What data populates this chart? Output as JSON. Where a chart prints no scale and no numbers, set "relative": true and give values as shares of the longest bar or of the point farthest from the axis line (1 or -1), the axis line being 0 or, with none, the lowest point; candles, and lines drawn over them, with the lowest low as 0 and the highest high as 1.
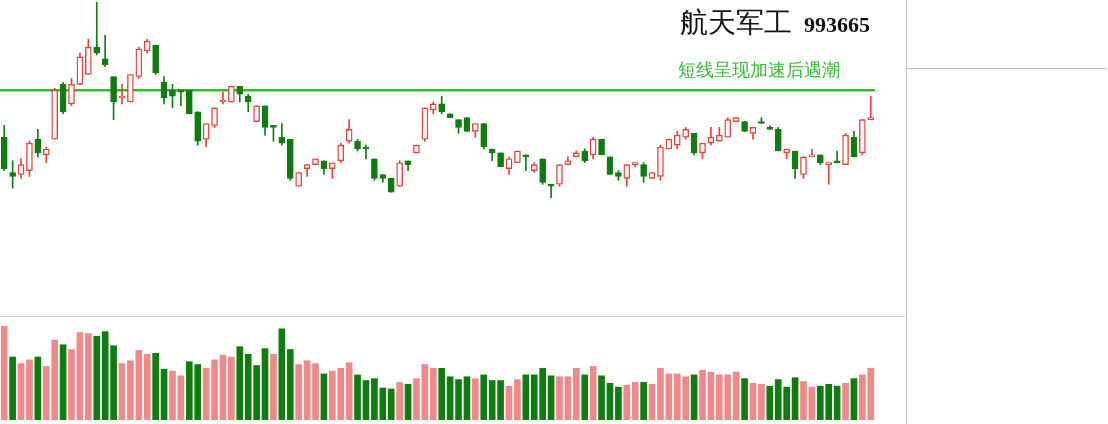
{
  "chart_data": [
    {
      "type": "candlestick",
      "title": "航天军工",
      "subtitle": "993665",
      "relative": true,
      "categories": [
        null,
        null,
        null,
        null,
        null,
        null,
        null,
        null,
        null,
        null,
        null,
        null,
        null,
        null,
        null,
        null,
        null,
        null,
        null,
        null,
        null,
        null,
        null,
        null,
        null,
        null,
        null,
        null,
        null,
        null,
        null,
        null,
        null,
        null,
        null,
        null,
        null,
        null,
        null,
        null,
        null,
        null,
        null,
        null,
        null,
        null,
        null,
        null,
        null,
        null,
        null,
        null,
        null,
        null,
        null,
        null,
        null,
        null,
        null,
        null,
        null,
        null,
        null,
        null,
        null,
        null,
        null,
        null,
        null,
        null,
        null,
        null,
        null,
        null,
        null,
        null,
        null,
        null,
        null,
        null,
        null,
        null,
        null,
        null,
        null,
        null,
        null,
        null,
        null,
        null,
        null,
        null,
        null,
        null,
        null,
        null,
        null,
        null,
        null,
        null,
        null,
        null,
        null,
        null
      ],
      "ohlc": [
        [
          0.31,
          0.37,
          0.14,
          0.15
        ],
        [
          0.13,
          0.19,
          0.05,
          0.11
        ],
        [
          0.12,
          0.2,
          0.1,
          0.17
        ],
        [
          0.14,
          0.29,
          0.11,
          0.28
        ],
        [
          0.3,
          0.35,
          0.21,
          0.23
        ],
        [
          0.22,
          0.26,
          0.18,
          0.25
        ],
        [
          0.3,
          0.56,
          0.3,
          0.55
        ],
        [
          0.58,
          0.59,
          0.43,
          0.44
        ],
        [
          0.48,
          0.61,
          0.47,
          0.58
        ],
        [
          0.58,
          0.74,
          0.58,
          0.72
        ],
        [
          0.63,
          0.81,
          0.63,
          0.77
        ],
        [
          0.77,
          1,
          0.73,
          0.74
        ],
        [
          0.71,
          0.83,
          0.67,
          0.68
        ],
        [
          0.62,
          0.62,
          0.4,
          0.49
        ],
        [
          0.51,
          0.58,
          0.48,
          0.52
        ],
        [
          0.49,
          0.63,
          0.49,
          0.63
        ],
        [
          0.62,
          0.77,
          0.61,
          0.76
        ],
        [
          0.75,
          0.81,
          0.74,
          0.8
        ],
        [
          0.78,
          0.78,
          0.63,
          0.64
        ],
        [
          0.59,
          0.62,
          0.48,
          0.51
        ],
        [
          0.55,
          0.58,
          0.46,
          0.52
        ],
        [
          0.55,
          0.55,
          0.47,
          0.54
        ],
        [
          0.55,
          0.55,
          0.43,
          0.43
        ],
        [
          0.44,
          0.44,
          0.27,
          0.29
        ],
        [
          0.3,
          0.38,
          0.26,
          0.38
        ],
        [
          0.37,
          0.46,
          0.36,
          0.46
        ],
        [
          0.49,
          0.54,
          0.48,
          0.5
        ],
        [
          0.49,
          0.57,
          0.49,
          0.57
        ],
        [
          0.57,
          0.57,
          0.49,
          0.53
        ],
        [
          0.52,
          0.53,
          0.44,
          0.49
        ],
        [
          0.39,
          0.47,
          0.39,
          0.47
        ],
        [
          0.47,
          0.47,
          0.32,
          0.36
        ],
        [
          0.37,
          0.37,
          0.29,
          0.36
        ],
        [
          0.31,
          0.38,
          0.27,
          0.28
        ],
        [
          0.3,
          0.3,
          0.09,
          0.1
        ],
        [
          0.06,
          0.13,
          0.06,
          0.13
        ],
        [
          0.15,
          0.17,
          0.11,
          0.17
        ],
        [
          0.17,
          0.2,
          0.17,
          0.2
        ],
        [
          0.19,
          0.19,
          0.12,
          0.15
        ],
        [
          0.15,
          0.18,
          0.1,
          0.18
        ],
        [
          0.19,
          0.28,
          0.18,
          0.27
        ],
        [
          0.29,
          0.4,
          0.28,
          0.35
        ],
        [
          0.29,
          0.3,
          0.24,
          0.25
        ],
        [
          0.26,
          0.27,
          0.2,
          0.25
        ],
        [
          0.2,
          0.2,
          0.09,
          0.1
        ],
        [
          0.12,
          0.12,
          0.08,
          0.1
        ],
        [
          0.1,
          0.1,
          0.03,
          0.03
        ],
        [
          0.06,
          0.19,
          0.06,
          0.18
        ],
        [
          0.19,
          0.19,
          0.14,
          0.17
        ],
        [
          0.23,
          0.27,
          0.23,
          0.27
        ],
        [
          0.3,
          0.46,
          0.29,
          0.46
        ],
        [
          0.45,
          0.49,
          0.43,
          0.48
        ],
        [
          0.48,
          0.52,
          0.43,
          0.44
        ],
        [
          0.43,
          0.43,
          0.41,
          0.41
        ],
        [
          0.4,
          0.4,
          0.33,
          0.36
        ],
        [
          0.41,
          0.41,
          0.34,
          0.34
        ],
        [
          0.34,
          0.38,
          0.31,
          0.38
        ],
        [
          0.38,
          0.38,
          0.25,
          0.26
        ],
        [
          0.25,
          0.25,
          0.19,
          0.23
        ],
        [
          0.23,
          0.23,
          0.16,
          0.16
        ],
        [
          0.15,
          0.21,
          0.12,
          0.2
        ],
        [
          0.18,
          0.24,
          0.18,
          0.24
        ],
        [
          0.22,
          0.22,
          0.14,
          0.21
        ],
        [
          0.14,
          0.18,
          0.13,
          0.17
        ],
        [
          0.2,
          0.2,
          0.07,
          0.08
        ],
        [
          0.07,
          0.07,
          0,
          0.06
        ],
        [
          0.07,
          0.17,
          0.06,
          0.17
        ],
        [
          0.17,
          0.21,
          0.17,
          0.19
        ],
        [
          0.21,
          0.24,
          0.21,
          0.23
        ],
        [
          0.24,
          0.25,
          0.18,
          0.19
        ],
        [
          0.22,
          0.31,
          0.2,
          0.3
        ],
        [
          0.3,
          0.3,
          0.22,
          0.22
        ],
        [
          0.21,
          0.21,
          0.12,
          0.12
        ],
        [
          0.13,
          0.14,
          0.09,
          0.11
        ],
        [
          0.1,
          0.17,
          0.06,
          0.17
        ],
        [
          0.17,
          0.18,
          0.16,
          0.18
        ],
        [
          0.17,
          0.18,
          0.08,
          0.11
        ],
        [
          0.1,
          0.13,
          0.1,
          0.13
        ],
        [
          0.11,
          0.27,
          0.09,
          0.26
        ],
        [
          0.25,
          0.3,
          0.25,
          0.3
        ],
        [
          0.27,
          0.34,
          0.25,
          0.32
        ],
        [
          0.31,
          0.36,
          0.3,
          0.35
        ],
        [
          0.33,
          0.33,
          0.22,
          0.23
        ],
        [
          0.23,
          0.28,
          0.2,
          0.28
        ],
        [
          0.28,
          0.36,
          0.27,
          0.31
        ],
        [
          0.29,
          0.36,
          0.29,
          0.32
        ],
        [
          0.31,
          0.41,
          0.31,
          0.4
        ],
        [
          0.39,
          0.41,
          0.39,
          0.41
        ],
        [
          0.39,
          0.39,
          0.34,
          0.34
        ],
        [
          0.33,
          0.36,
          0.3,
          0.36
        ],
        [
          0.39,
          0.41,
          0.38,
          0.38
        ],
        [
          0.36,
          0.37,
          0.35,
          0.35
        ],
        [
          0.35,
          0.36,
          0.24,
          0.24
        ],
        [
          0.23,
          0.25,
          0.2,
          0.25
        ],
        [
          0.24,
          0.24,
          0.1,
          0.15
        ],
        [
          0.12,
          0.21,
          0.1,
          0.21
        ],
        [
          0.21,
          0.25,
          0.21,
          0.22
        ],
        [
          0.22,
          0.22,
          0.17,
          0.18
        ],
        [
          0.17,
          0.18,
          0.07,
          0.18
        ],
        [
          0.19,
          0.24,
          0.18,
          0.18
        ],
        [
          0.17,
          0.33,
          0.17,
          0.32
        ],
        [
          0.31,
          0.34,
          0.21,
          0.21
        ],
        [
          0.23,
          0.4,
          0.22,
          0.4
        ],
        [
          0.4,
          0.52,
          0.4,
          0.41
        ]
      ],
      "colors": [
        "#107c10",
        "#107c10",
        "#e8413a",
        "#e8413a",
        "#107c10",
        "#e8413a",
        "#e8413a",
        "#107c10",
        "#e8413a",
        "#e8413a",
        "#e8413a",
        "#107c10",
        "#107c10",
        "#107c10",
        "#e8413a",
        "#e8413a",
        "#e8413a",
        "#e8413a",
        "#107c10",
        "#107c10",
        "#107c10",
        "#107c10",
        "#107c10",
        "#107c10",
        "#e8413a",
        "#e8413a",
        "#e8413a",
        "#e8413a",
        "#107c10",
        "#107c10",
        "#e8413a",
        "#107c10",
        "#107c10",
        "#107c10",
        "#107c10",
        "#e8413a",
        "#e8413a",
        "#e8413a",
        "#107c10",
        "#e8413a",
        "#e8413a",
        "#e8413a",
        "#107c10",
        "#107c10",
        "#107c10",
        "#107c10",
        "#107c10",
        "#e8413a",
        "#107c10",
        "#e8413a",
        "#e8413a",
        "#e8413a",
        "#107c10",
        "#107c10",
        "#107c10",
        "#107c10",
        "#e8413a",
        "#107c10",
        "#107c10",
        "#107c10",
        "#e8413a",
        "#e8413a",
        "#107c10",
        "#e8413a",
        "#107c10",
        "#107c10",
        "#e8413a",
        "#e8413a",
        "#e8413a",
        "#107c10",
        "#e8413a",
        "#107c10",
        "#107c10",
        "#107c10",
        "#e8413a",
        "#e8413a",
        "#107c10",
        "#e8413a",
        "#e8413a",
        "#e8413a",
        "#e8413a",
        "#e8413a",
        "#107c10",
        "#e8413a",
        "#e8413a",
        "#e8413a",
        "#e8413a",
        "#e8413a",
        "#107c10",
        "#e8413a",
        "#107c10",
        "#107c10",
        "#107c10",
        "#e8413a",
        "#107c10",
        "#e8413a",
        "#e8413a",
        "#107c10",
        "#e8413a",
        "#107c10",
        "#e8413a",
        "#107c10",
        "#e8413a",
        "#e8413a"
      ],
      "ref_lines": [
        {
          "axis": "y",
          "value": 0.55,
          "label": "短线呈现加速后遇潮",
          "color": "#2ebd2e"
        }
      ]
    },
    {
      "type": "bar",
      "relative": true,
      "categories": [
        null,
        null,
        null,
        null,
        null,
        null,
        null,
        null,
        null,
        null,
        null,
        null,
        null,
        null,
        null,
        null,
        null,
        null,
        null,
        null,
        null,
        null,
        null,
        null,
        null,
        null,
        null,
        null,
        null,
        null,
        null,
        null,
        null,
        null,
        null,
        null,
        null,
        null,
        null,
        null,
        null,
        null,
        null,
        null,
        null,
        null,
        null,
        null,
        null,
        null,
        null,
        null,
        null,
        null,
        null,
        null,
        null,
        null,
        null,
        null,
        null,
        null,
        null,
        null,
        null,
        null,
        null,
        null,
        null,
        null,
        null,
        null,
        null,
        null,
        null,
        null,
        null,
        null,
        null,
        null,
        null,
        null,
        null,
        null,
        null,
        null,
        null,
        null,
        null,
        null,
        null,
        null,
        null,
        null,
        null,
        null,
        null,
        null,
        null,
        null,
        null,
        null,
        null,
        null
      ],
      "values": [
        1,
        0.67,
        0.6,
        0.64,
        0.67,
        0.57,
        0.85,
        0.8,
        0.75,
        0.93,
        0.92,
        0.89,
        0.94,
        0.79,
        0.6,
        0.63,
        0.74,
        0.7,
        0.71,
        0.54,
        0.52,
        0.47,
        0.62,
        0.59,
        0.55,
        0.64,
        0.69,
        0.67,
        0.78,
        0.7,
        0.58,
        0.76,
        0.7,
        0.97,
        0.75,
        0.59,
        0.63,
        0.6,
        0.49,
        0.52,
        0.55,
        0.61,
        0.48,
        0.42,
        0.44,
        0.34,
        0.33,
        0.4,
        0.38,
        0.44,
        0.59,
        0.55,
        0.55,
        0.46,
        0.43,
        0.46,
        0.44,
        0.48,
        0.42,
        0.42,
        0.36,
        0.43,
        0.48,
        0.48,
        0.55,
        0.47,
        0.46,
        0.46,
        0.55,
        0.48,
        0.57,
        0.47,
        0.39,
        0.35,
        0.37,
        0.4,
        0.4,
        0.38,
        0.55,
        0.49,
        0.49,
        0.46,
        0.48,
        0.53,
        0.51,
        0.48,
        0.48,
        0.51,
        0.44,
        0.39,
        0.38,
        0.36,
        0.43,
        0.35,
        0.45,
        0.41,
        0.35,
        0.36,
        0.38,
        0.36,
        0.39,
        0.44,
        0.48,
        0.55
      ],
      "colors": [
        "#f08a8a",
        "#107c10",
        "#f08a8a",
        "#f08a8a",
        "#107c10",
        "#f08a8a",
        "#f08a8a",
        "#107c10",
        "#f08a8a",
        "#f08a8a",
        "#f08a8a",
        "#107c10",
        "#107c10",
        "#107c10",
        "#f08a8a",
        "#f08a8a",
        "#f08a8a",
        "#f08a8a",
        "#107c10",
        "#107c10",
        "#f08a8a",
        "#f08a8a",
        "#107c10",
        "#107c10",
        "#f08a8a",
        "#f08a8a",
        "#f08a8a",
        "#f08a8a",
        "#107c10",
        "#107c10",
        "#107c10",
        "#107c10",
        "#f08a8a",
        "#107c10",
        "#107c10",
        "#f08a8a",
        "#f08a8a",
        "#f08a8a",
        "#107c10",
        "#f08a8a",
        "#f08a8a",
        "#f08a8a",
        "#107c10",
        "#107c10",
        "#107c10",
        "#107c10",
        "#107c10",
        "#f08a8a",
        "#107c10",
        "#f08a8a",
        "#f08a8a",
        "#f08a8a",
        "#107c10",
        "#107c10",
        "#107c10",
        "#107c10",
        "#f08a8a",
        "#107c10",
        "#107c10",
        "#107c10",
        "#f08a8a",
        "#f08a8a",
        "#107c10",
        "#107c10",
        "#107c10",
        "#107c10",
        "#f08a8a",
        "#f08a8a",
        "#f08a8a",
        "#107c10",
        "#f08a8a",
        "#107c10",
        "#107c10",
        "#107c10",
        "#f08a8a",
        "#f08a8a",
        "#107c10",
        "#f08a8a",
        "#f08a8a",
        "#f08a8a",
        "#f08a8a",
        "#f08a8a",
        "#107c10",
        "#f08a8a",
        "#f08a8a",
        "#f08a8a",
        "#f08a8a",
        "#f08a8a",
        "#107c10",
        "#f08a8a",
        "#f08a8a",
        "#107c10",
        "#107c10",
        "#107c10",
        "#107c10",
        "#f08a8a",
        "#f08a8a",
        "#107c10",
        "#107c10",
        "#107c10",
        "#f08a8a",
        "#107c10",
        "#f08a8a",
        "#f08a8a"
      ]
    }
  ]
}
